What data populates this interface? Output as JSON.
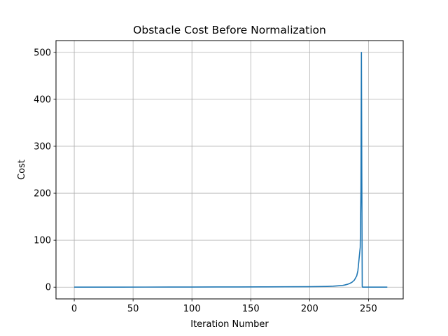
{
  "chart_data": {
    "type": "line",
    "title": "Obstacle Cost Before Normalization",
    "xlabel": "Iteration Number",
    "ylabel": "Cost",
    "xlim": [
      -15.5,
      279.5
    ],
    "ylim": [
      -25,
      525
    ],
    "xticks": [
      0,
      50,
      100,
      150,
      200,
      250
    ],
    "yticks": [
      0,
      100,
      200,
      300,
      400,
      500
    ],
    "grid": true,
    "line_color": "#1f77b4",
    "series": [
      {
        "x": [
          0,
          20,
          40,
          60,
          80,
          100,
          120,
          140,
          160,
          180,
          200,
          210,
          215,
          220,
          225,
          228,
          230,
          232,
          234,
          236,
          238,
          240,
          241,
          242,
          243,
          243.6,
          244,
          244.3,
          244.7,
          245,
          255,
          266
        ],
        "y": [
          0,
          0.05,
          0.1,
          0.15,
          0.2,
          0.3,
          0.4,
          0.5,
          0.6,
          0.8,
          1.0,
          1.3,
          1.6,
          2.1,
          3,
          3.7,
          4.7,
          6,
          7.8,
          10.5,
          15,
          24,
          35,
          60,
          85,
          210,
          500,
          250,
          1.5,
          0,
          0,
          0
        ]
      }
    ]
  }
}
